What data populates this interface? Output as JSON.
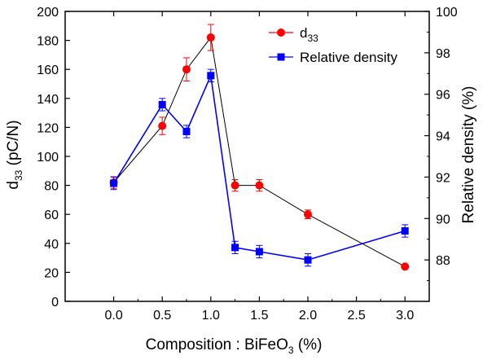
{
  "chart_data": {
    "type": "line",
    "xlabel": {
      "main": "Composition : BiFeO",
      "sub": "3",
      "tail": " (%)"
    },
    "ylabel_left": {
      "main": "d",
      "sub": "33",
      "tail": " (pC/N)"
    },
    "ylabel_right": "Relative density (%)",
    "xlim": [
      -0.5,
      3.25
    ],
    "ylim_left": [
      0,
      200
    ],
    "ylim_right": [
      86,
      100
    ],
    "x_ticks": [
      "0.0",
      "0.5",
      "1.0",
      "1.5",
      "2.0",
      "2.5",
      "3.0"
    ],
    "y_left_ticks": [
      "0",
      "20",
      "40",
      "60",
      "80",
      "100",
      "120",
      "140",
      "160",
      "180",
      "200"
    ],
    "y_right_ticks": [
      "88",
      "90",
      "92",
      "94",
      "96",
      "98",
      "100"
    ],
    "grid": false,
    "legend_position": "top-right",
    "series": [
      {
        "name": {
          "main": "d",
          "sub": "33"
        },
        "axis": "left",
        "marker": "circle",
        "color": "#ff0000",
        "line_color": "#000000",
        "x": [
          0.0,
          0.5,
          0.75,
          1.0,
          1.25,
          1.5,
          2.0,
          3.0
        ],
        "y": [
          82,
          121,
          160,
          182,
          80,
          80,
          60,
          24
        ],
        "err": [
          4,
          6,
          8,
          9,
          4,
          4,
          3,
          0
        ]
      },
      {
        "name": {
          "main": "Relative density",
          "sub": ""
        },
        "axis": "right",
        "marker": "square",
        "color": "#0000ff",
        "line_color": "#0000ff",
        "x": [
          0.0,
          0.5,
          0.75,
          1.0,
          1.25,
          1.5,
          2.0,
          3.0
        ],
        "y": [
          91.7,
          95.5,
          94.2,
          96.9,
          88.6,
          88.4,
          88.0,
          89.4
        ],
        "err": [
          0.3,
          0.3,
          0.3,
          0.3,
          0.3,
          0.3,
          0.3,
          0.3
        ]
      }
    ]
  }
}
